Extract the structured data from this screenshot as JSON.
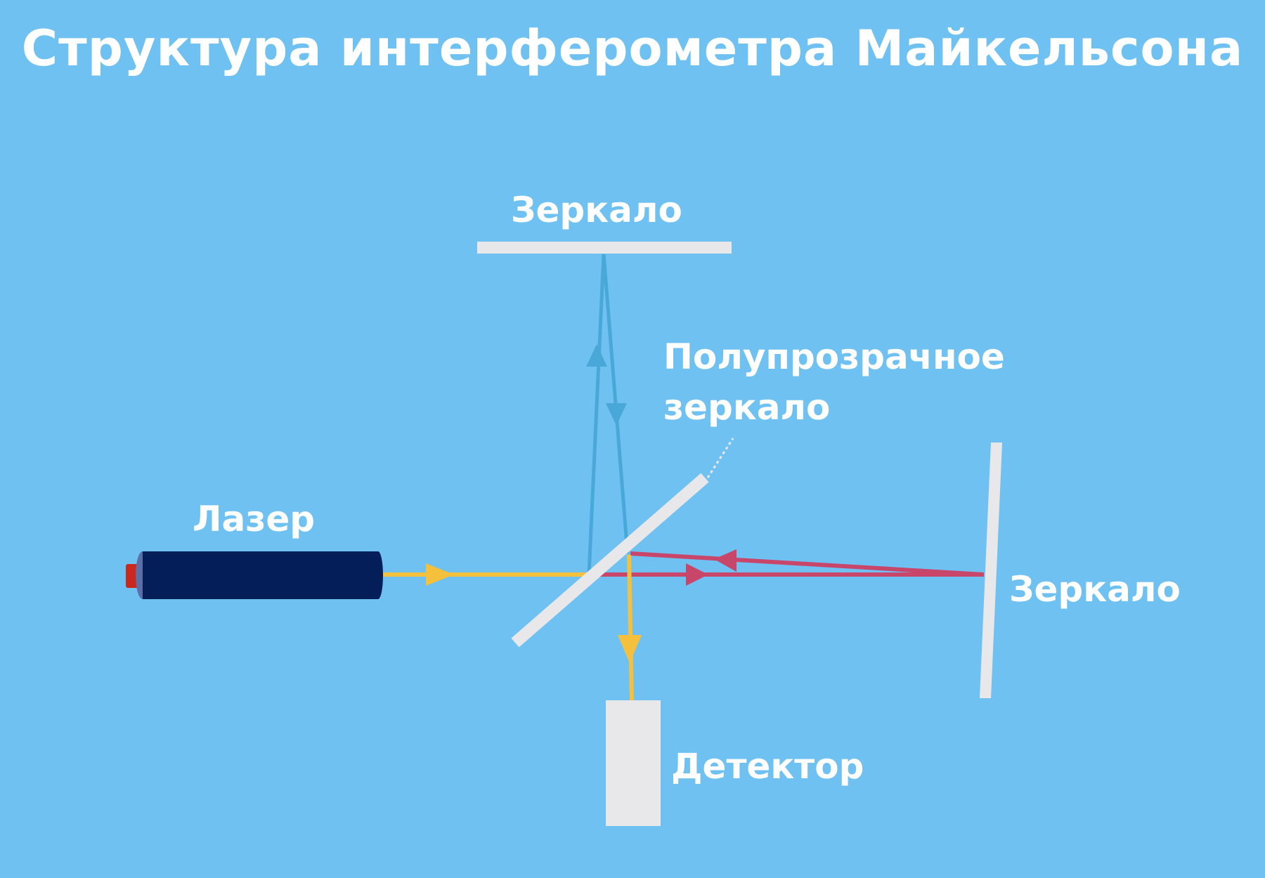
{
  "title": "Структура интерферометра Майкельсона",
  "labels": {
    "top_mirror": "Зеркало",
    "beam_splitter_line1": "Полупрозрачное",
    "beam_splitter_line2": "зеркало",
    "laser": "Лазер",
    "right_mirror": "Зеркало",
    "detector": "Детектор"
  },
  "colors": {
    "background": "#6fc1f2",
    "laser_body": "#031e59",
    "laser_tip": "#c8281e",
    "mirror": "#e8e8ea",
    "beam_source": "#f5c13c",
    "beam_vertical_arm": "#4aa8d8",
    "beam_horizontal_arm": "#c8466a"
  }
}
